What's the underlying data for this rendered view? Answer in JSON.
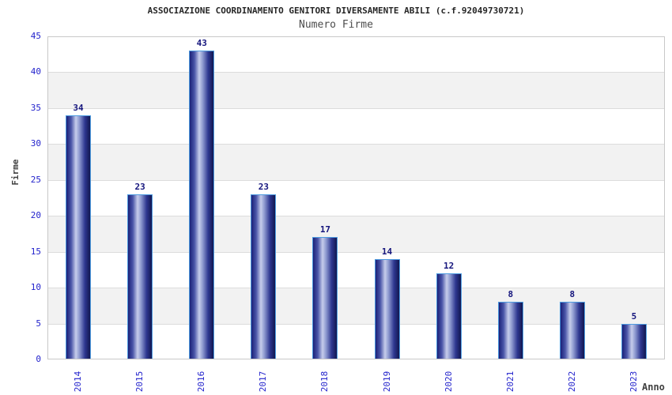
{
  "chart_data": {
    "type": "bar",
    "title": "ASSOCIAZIONE COORDINAMENTO GENITORI DIVERSAMENTE ABILI (c.f.92049730721)",
    "subtitle": "Numero Firme",
    "xlabel": "Anno",
    "ylabel": "Firme",
    "categories": [
      "2014",
      "2015",
      "2016",
      "2017",
      "2018",
      "2019",
      "2020",
      "2021",
      "2022",
      "2023"
    ],
    "values": [
      34,
      23,
      43,
      23,
      17,
      14,
      12,
      8,
      8,
      5
    ],
    "ylim": [
      0,
      45
    ],
    "ytick_step": 5,
    "yticks": [
      0,
      5,
      10,
      15,
      20,
      25,
      30,
      35,
      40,
      45
    ],
    "legend_position": "none",
    "grid": "horizontal alternating bands",
    "style": {
      "title_color": "#262626",
      "subtitle_color": "#4d4d4d",
      "axis_label_color": "#404040",
      "tick_color": "#2323cc",
      "value_label_color": "#15157d",
      "band_color": "#f2f2f2",
      "band_alt_color": "#ffffff",
      "gridline_color": "#dcdcdc",
      "plot_border_color": "#c8c8c8",
      "bar_border_color": "#4d9be0",
      "bar_gradient_stops": [
        "#1b2178",
        "#4a55a8",
        "#c6cdeb",
        "#8d99cf",
        "#2e3790",
        "#121750"
      ],
      "bar_gradient_positions": [
        0,
        20,
        40,
        55,
        78,
        100
      ]
    }
  }
}
